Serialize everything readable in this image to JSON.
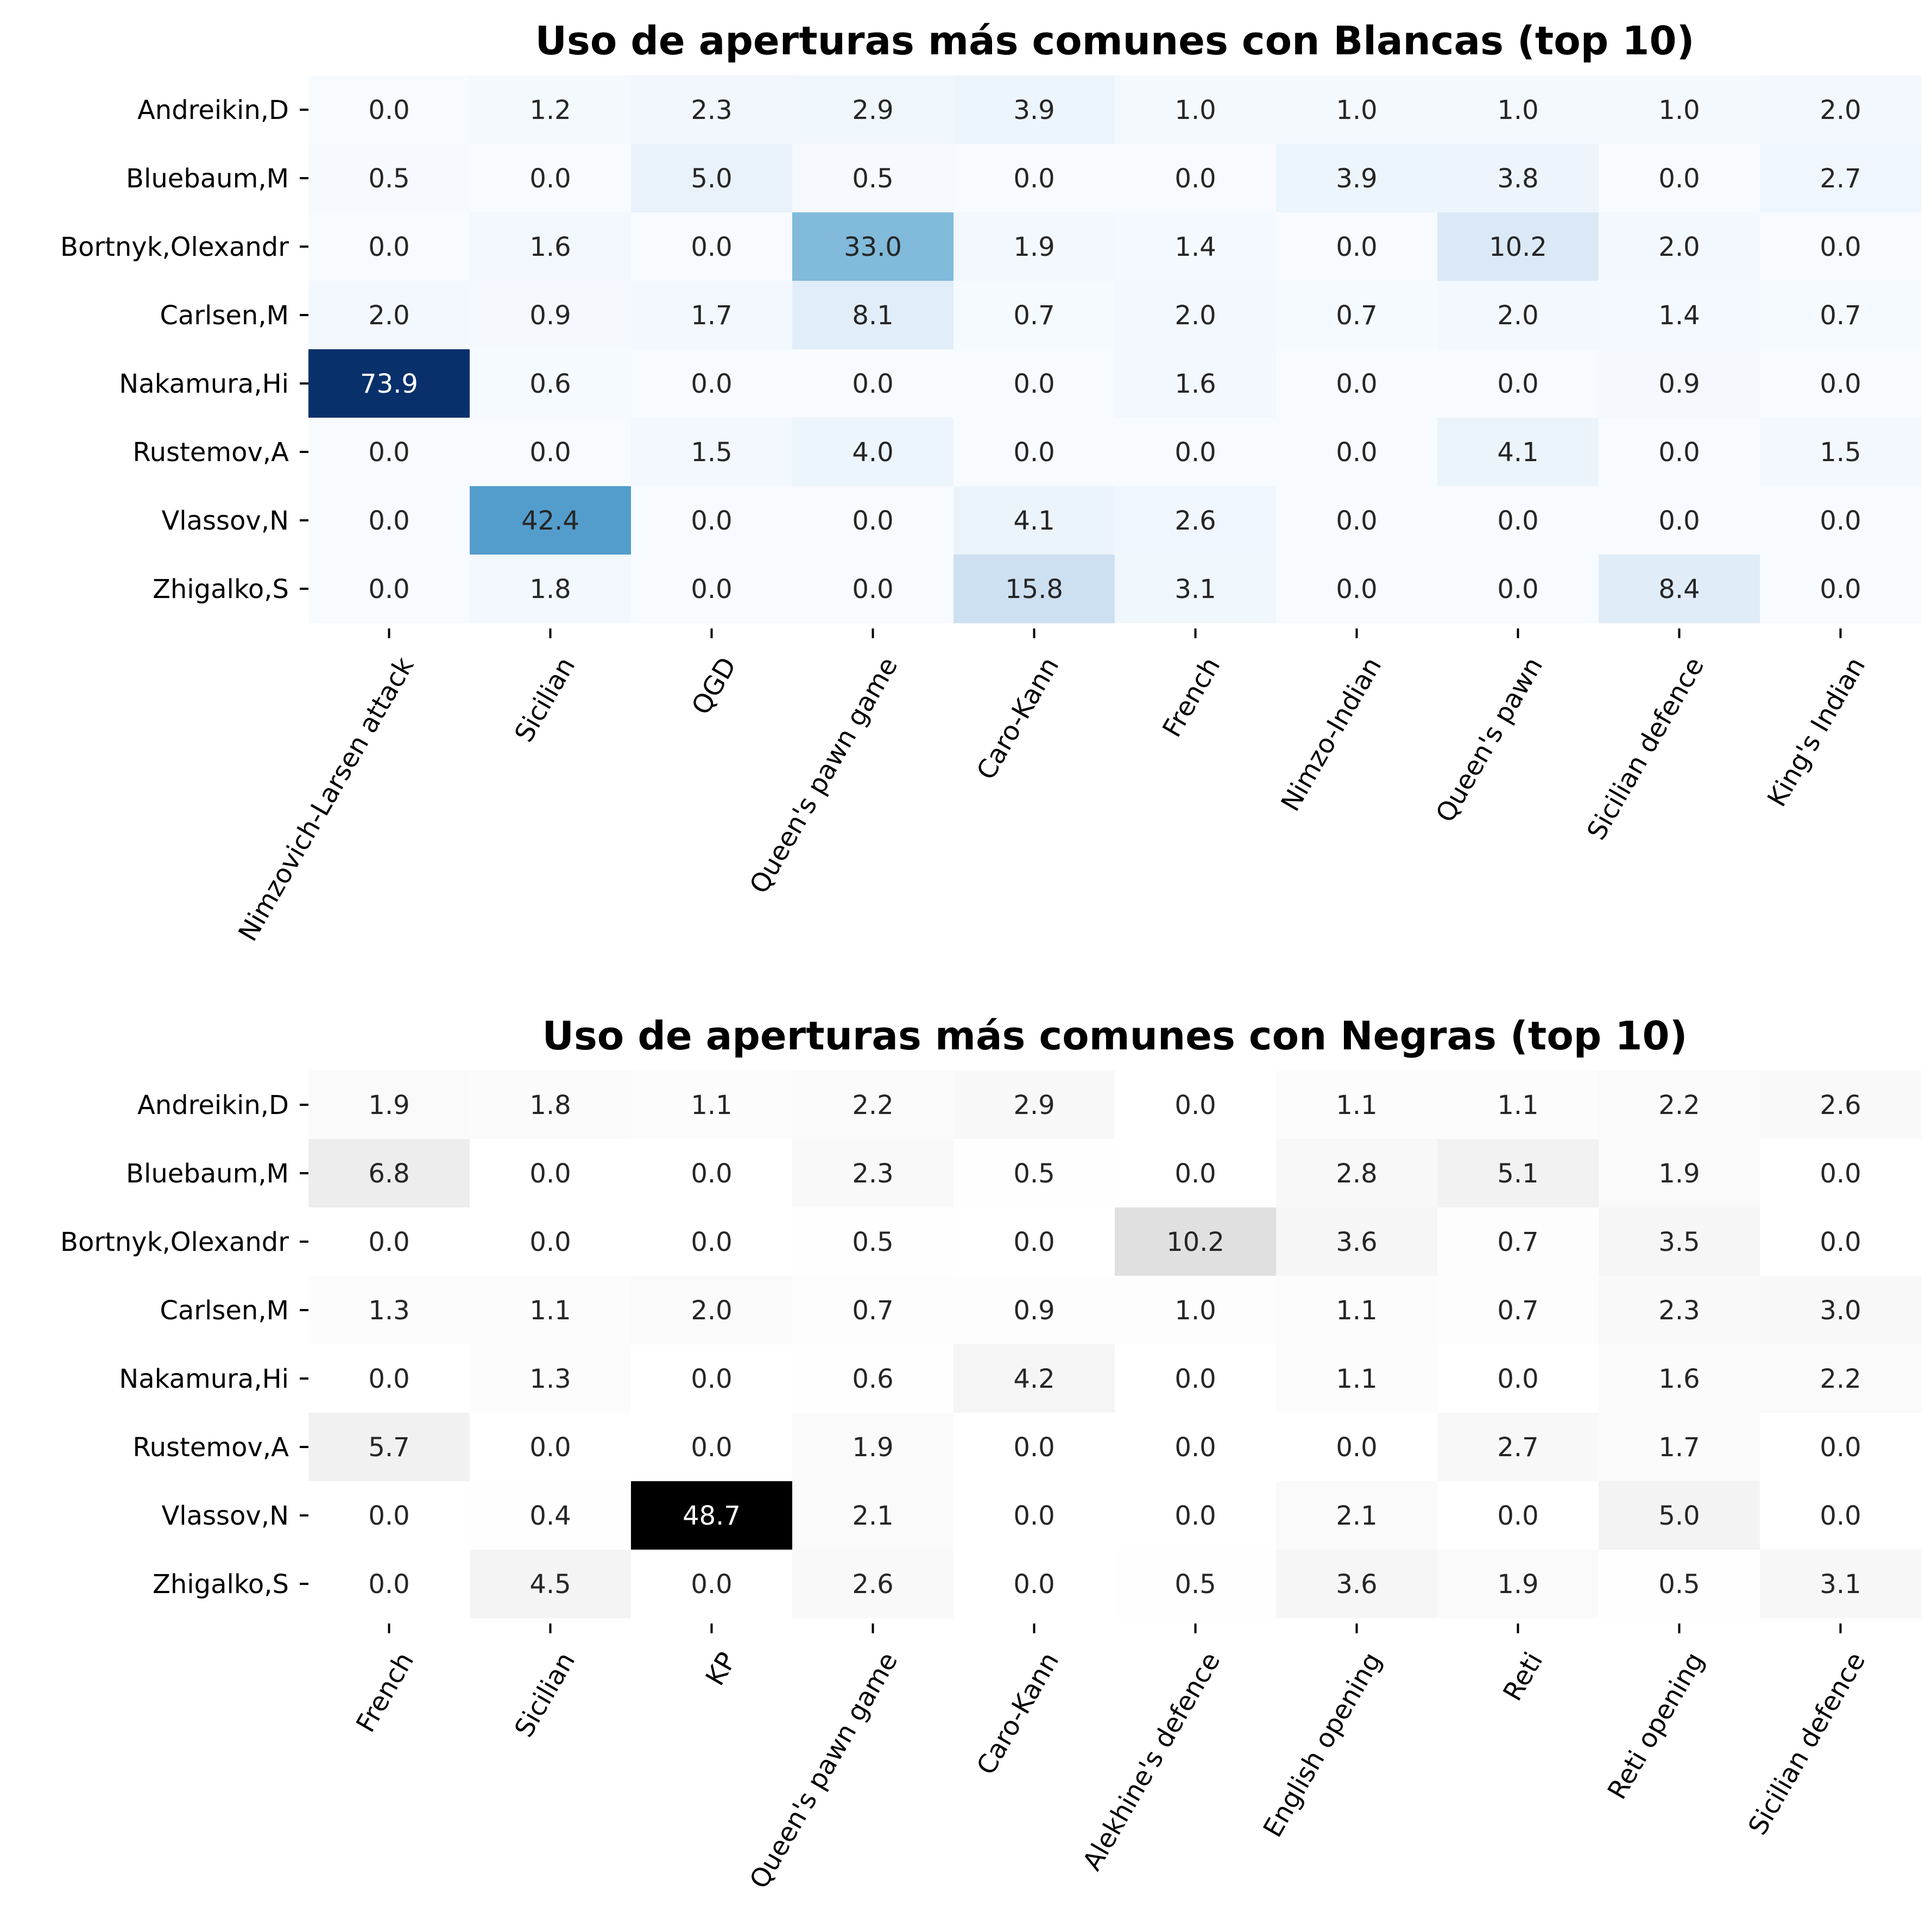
{
  "chart_data": [
    {
      "type": "heatmap",
      "title": "Uso de aperturas más comunes con Blancas (top 10)",
      "colormap": "Blues",
      "color_range": [
        0,
        73.9
      ],
      "rows": [
        "Andreikin,D",
        "Bluebaum,M",
        "Bortnyk,Olexandr",
        "Carlsen,M",
        "Nakamura,Hi",
        "Rustemov,A",
        "Vlassov,N",
        "Zhigalko,S"
      ],
      "columns": [
        "Nimzovich-Larsen attack",
        "Sicilian",
        "QGD",
        "Queen's pawn game",
        "Caro-Kann",
        "French",
        "Nimzo-Indian",
        "Queen's pawn",
        "Sicilian defence",
        "King's Indian"
      ],
      "values": [
        [
          0.0,
          1.2,
          2.3,
          2.9,
          3.9,
          1.0,
          1.0,
          1.0,
          1.0,
          2.0
        ],
        [
          0.5,
          0.0,
          5.0,
          0.5,
          0.0,
          0.0,
          3.9,
          3.8,
          0.0,
          2.7
        ],
        [
          0.0,
          1.6,
          0.0,
          33.0,
          1.9,
          1.4,
          0.0,
          10.2,
          2.0,
          0.0
        ],
        [
          2.0,
          0.9,
          1.7,
          8.1,
          0.7,
          2.0,
          0.7,
          2.0,
          1.4,
          0.7
        ],
        [
          73.9,
          0.6,
          0.0,
          0.0,
          0.0,
          1.6,
          0.0,
          0.0,
          0.9,
          0.0
        ],
        [
          0.0,
          0.0,
          1.5,
          4.0,
          0.0,
          0.0,
          0.0,
          4.1,
          0.0,
          1.5
        ],
        [
          0.0,
          42.4,
          0.0,
          0.0,
          4.1,
          2.6,
          0.0,
          0.0,
          0.0,
          0.0
        ],
        [
          0.0,
          1.8,
          0.0,
          0.0,
          15.8,
          3.1,
          0.0,
          0.0,
          8.4,
          0.0
        ]
      ]
    },
    {
      "type": "heatmap",
      "title": "Uso de aperturas más comunes con Negras (top 10)",
      "colormap": "Greys",
      "color_range": [
        0,
        48.7
      ],
      "rows": [
        "Andreikin,D",
        "Bluebaum,M",
        "Bortnyk,Olexandr",
        "Carlsen,M",
        "Nakamura,Hi",
        "Rustemov,A",
        "Vlassov,N",
        "Zhigalko,S"
      ],
      "columns": [
        "French",
        "Sicilian",
        "KP",
        "Queen's pawn game",
        "Caro-Kann",
        "Alekhine's defence",
        "English opening",
        "Reti",
        "Reti opening",
        "Sicilian defence"
      ],
      "values": [
        [
          1.9,
          1.8,
          1.1,
          2.2,
          2.9,
          0.0,
          1.1,
          1.1,
          2.2,
          2.6
        ],
        [
          6.8,
          0.0,
          0.0,
          2.3,
          0.5,
          0.0,
          2.8,
          5.1,
          1.9,
          0.0
        ],
        [
          0.0,
          0.0,
          0.0,
          0.5,
          0.0,
          10.2,
          3.6,
          0.7,
          3.5,
          0.0
        ],
        [
          1.3,
          1.1,
          2.0,
          0.7,
          0.9,
          1.0,
          1.1,
          0.7,
          2.3,
          3.0
        ],
        [
          0.0,
          1.3,
          0.0,
          0.6,
          4.2,
          0.0,
          1.1,
          0.0,
          1.6,
          2.2
        ],
        [
          5.7,
          0.0,
          0.0,
          1.9,
          0.0,
          0.0,
          0.0,
          2.7,
          1.7,
          0.0
        ],
        [
          0.0,
          0.4,
          48.7,
          2.1,
          0.0,
          0.0,
          2.1,
          0.0,
          5.0,
          0.0
        ],
        [
          0.0,
          4.5,
          0.0,
          2.6,
          0.0,
          0.5,
          3.6,
          1.9,
          0.5,
          3.1
        ]
      ]
    }
  ]
}
